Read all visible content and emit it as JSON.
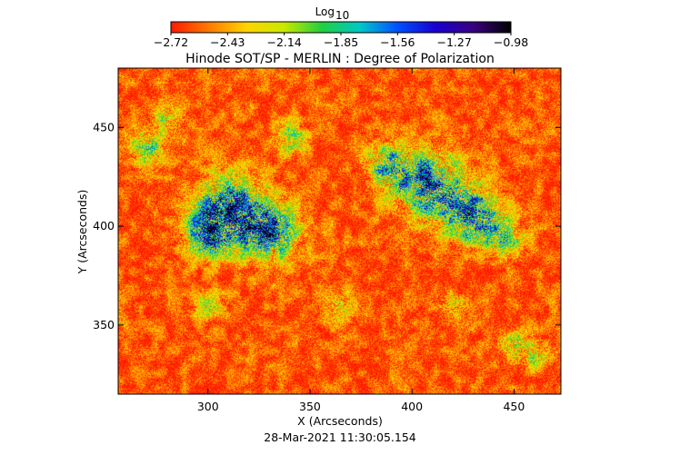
{
  "chart_data": {
    "type": "heatmap",
    "title": "Hinode SOT/SP - MERLIN : Degree of Polarization",
    "xlabel": "X (Arcseconds)",
    "ylabel": "Y (Arcseconds)",
    "xlim": [
      256,
      473
    ],
    "ylim": [
      315,
      480
    ],
    "x_ticks": [
      300,
      350,
      400,
      450
    ],
    "y_ticks": [
      350,
      400,
      450
    ],
    "timestamp": "28-Mar-2021 11:30:05.154",
    "colorbar": {
      "label": "Log",
      "label_sub": "10",
      "range": [
        -2.72,
        -0.98
      ],
      "ticks": [
        "−2.72",
        "−2.43",
        "−2.14",
        "−1.85",
        "−1.56",
        "−1.27",
        "−0.98"
      ],
      "colors": [
        "#ff1a00",
        "#ff7a00",
        "#ffd400",
        "#c8e800",
        "#20d040",
        "#00c8c8",
        "#0050ff",
        "#1800d0",
        "#3a0080",
        "#000000"
      ]
    },
    "background_value": -2.6,
    "features": [
      {
        "x": 310,
        "y": 408,
        "strength": 1.0,
        "spread": 16
      },
      {
        "x": 330,
        "y": 398,
        "strength": 0.9,
        "spread": 13
      },
      {
        "x": 300,
        "y": 395,
        "strength": 0.7,
        "spread": 10
      },
      {
        "x": 410,
        "y": 420,
        "strength": 0.9,
        "spread": 16
      },
      {
        "x": 430,
        "y": 405,
        "strength": 0.8,
        "spread": 13
      },
      {
        "x": 390,
        "y": 430,
        "strength": 0.7,
        "spread": 11
      },
      {
        "x": 445,
        "y": 395,
        "strength": 0.5,
        "spread": 9
      },
      {
        "x": 270,
        "y": 440,
        "strength": 0.5,
        "spread": 8
      },
      {
        "x": 280,
        "y": 455,
        "strength": 0.4,
        "spread": 7
      },
      {
        "x": 340,
        "y": 445,
        "strength": 0.4,
        "spread": 8
      },
      {
        "x": 450,
        "y": 340,
        "strength": 0.4,
        "spread": 7
      },
      {
        "x": 365,
        "y": 360,
        "strength": 0.35,
        "spread": 7
      },
      {
        "x": 460,
        "y": 335,
        "strength": 0.35,
        "spread": 7
      },
      {
        "x": 300,
        "y": 360,
        "strength": 0.3,
        "spread": 7
      },
      {
        "x": 420,
        "y": 360,
        "strength": 0.3,
        "spread": 7
      }
    ]
  }
}
